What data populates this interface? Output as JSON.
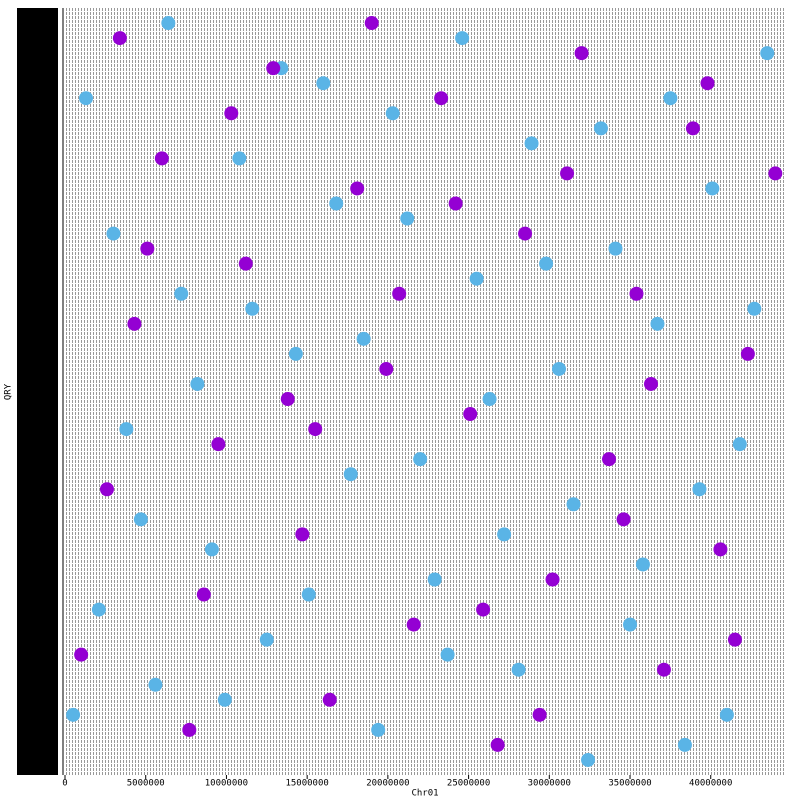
{
  "chart_data": {
    "type": "scatter",
    "xlabel": "Chr01",
    "ylabel": "QRY",
    "xlim": [
      0,
      44600000
    ],
    "ylim": [
      -1,
      50
    ],
    "xticks": [
      0,
      5000000,
      10000000,
      15000000,
      20000000,
      25000000,
      30000000,
      35000000,
      40000000
    ],
    "series": [
      {
        "color": "#5ab4e6",
        "x": [
          500000,
          2100000,
          3800000,
          5600000,
          7200000,
          9100000,
          10800000,
          12500000,
          14300000,
          16000000,
          17700000,
          19400000,
          21200000,
          22900000,
          24600000,
          26300000,
          28100000,
          29800000,
          31500000,
          33200000,
          35000000,
          36700000,
          38400000,
          40100000,
          41800000,
          43500000,
          1300000,
          3000000,
          4700000,
          6400000,
          8200000,
          9900000,
          11600000,
          13400000,
          15100000,
          16800000,
          18500000,
          20300000,
          22000000,
          23700000,
          25500000,
          27200000,
          28900000,
          30600000,
          32400000,
          34100000,
          35800000,
          37500000,
          39300000,
          41000000,
          42700000
        ],
        "values": [
          3,
          10,
          22,
          5,
          31,
          14,
          40,
          8,
          27,
          45,
          19,
          2,
          36,
          12,
          48,
          24,
          6,
          33,
          17,
          42,
          9,
          29,
          1,
          38,
          21,
          47,
          44,
          35,
          16,
          49,
          25,
          4,
          30,
          46,
          11,
          37,
          28,
          43,
          20,
          7,
          32,
          15,
          41,
          26,
          0,
          34,
          13,
          44,
          18,
          3,
          30
        ]
      },
      {
        "color": "#9400d3",
        "x": [
          1000000,
          2600000,
          4300000,
          6000000,
          7700000,
          9500000,
          11200000,
          12900000,
          14700000,
          16400000,
          18100000,
          19900000,
          21600000,
          23300000,
          25100000,
          26800000,
          28500000,
          30200000,
          32000000,
          33700000,
          35400000,
          37100000,
          38900000,
          40600000,
          42300000,
          44000000,
          3400000,
          8600000,
          13800000,
          19000000,
          24200000,
          29400000,
          34600000,
          39800000,
          5100000,
          10300000,
          15500000,
          20700000,
          25900000,
          31100000,
          36300000,
          41500000
        ],
        "values": [
          7,
          18,
          29,
          40,
          2,
          21,
          33,
          46,
          15,
          4,
          38,
          26,
          9,
          44,
          23,
          1,
          35,
          12,
          47,
          20,
          31,
          6,
          42,
          14,
          27,
          39,
          48,
          11,
          24,
          49,
          37,
          3,
          16,
          45,
          34,
          43,
          22,
          31,
          10,
          39,
          25,
          8
        ]
      }
    ]
  }
}
